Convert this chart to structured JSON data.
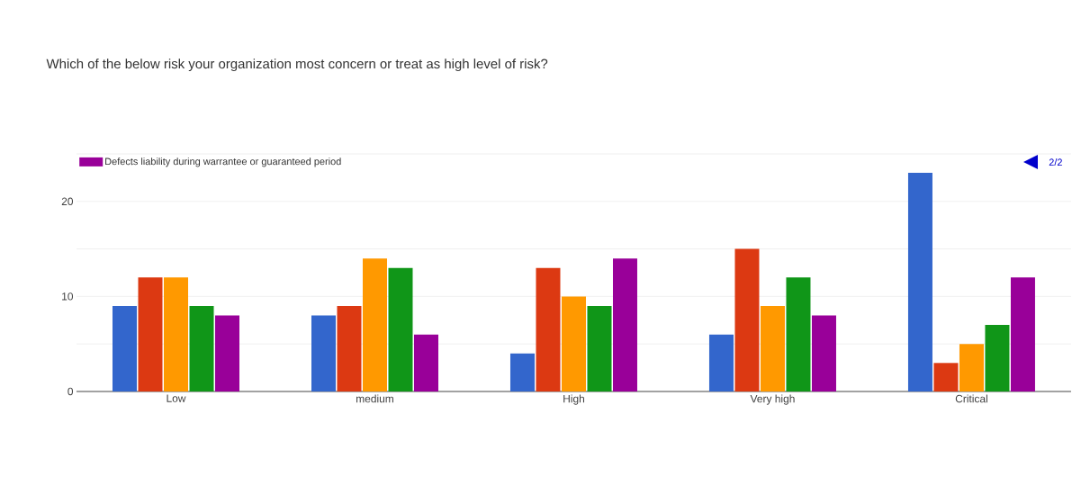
{
  "chart_data": {
    "type": "bar",
    "title": "Which of the below risk your organization most concern or treat as high level of risk?",
    "categories": [
      "Low",
      "medium",
      "High",
      "Very high",
      "Critical"
    ],
    "series": [
      {
        "color": "#3366cc",
        "values": [
          9,
          8,
          4,
          6,
          23
        ]
      },
      {
        "color": "#dc3912",
        "values": [
          12,
          9,
          13,
          15,
          3
        ]
      },
      {
        "color": "#ff9900",
        "values": [
          12,
          14,
          10,
          9,
          5
        ]
      },
      {
        "color": "#109618",
        "values": [
          9,
          13,
          9,
          12,
          7
        ]
      },
      {
        "name": "Defects liability during warrantee or guaranteed period",
        "color": "#990099",
        "values": [
          8,
          6,
          14,
          8,
          12
        ]
      }
    ],
    "ylim": [
      0,
      25
    ],
    "yticks": [
      0,
      {
        "value": 5,
        "label": null
      },
      10,
      {
        "value": 15,
        "label": null
      },
      20,
      {
        "value": 25,
        "label": null
      }
    ],
    "grid": "y",
    "legend": "top left",
    "annotations": [
      "2/2"
    ]
  }
}
